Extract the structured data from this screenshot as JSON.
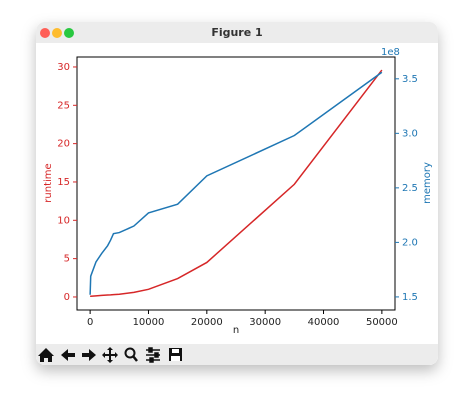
{
  "window": {
    "title": "Figure 1"
  },
  "chart_data": {
    "type": "line",
    "x_label": "n",
    "y_label": "runtime",
    "y2_label": "memory",
    "y2_offset_label": "1e8",
    "x": [
      0,
      100,
      1000,
      2000,
      3000,
      3500,
      4000,
      5000,
      7500,
      10000,
      15000,
      20000,
      35000,
      50000
    ],
    "series": [
      {
        "name": "runtime",
        "color": "#d62728",
        "values": [
          0.1,
          0.1,
          0.15,
          0.2,
          0.25,
          0.27,
          0.3,
          0.35,
          0.6,
          1.0,
          2.4,
          4.5,
          14.7,
          29.6
        ]
      },
      {
        "name": "memory",
        "color": "#1f77b4",
        "axis": "y2",
        "values": [
          1.52,
          1.69,
          1.82,
          1.9,
          1.97,
          2.02,
          2.08,
          2.09,
          2.15,
          2.27,
          2.35,
          2.61,
          2.98,
          3.56
        ]
      }
    ],
    "xlim": [
      -2250,
      52250
    ],
    "xticks": [
      0,
      10000,
      20000,
      30000,
      40000,
      50000
    ],
    "ylim": [
      -1.7,
      31.3
    ],
    "yticks": [
      0,
      5,
      10,
      15,
      20,
      25,
      30
    ],
    "y2lim": [
      1.38,
      3.7
    ],
    "y2ticks": [
      1.5,
      {
        "value": 2,
        "label": "2.0"
      },
      2.5,
      {
        "value": 3,
        "label": "3.0"
      },
      3.5
    ]
  }
}
